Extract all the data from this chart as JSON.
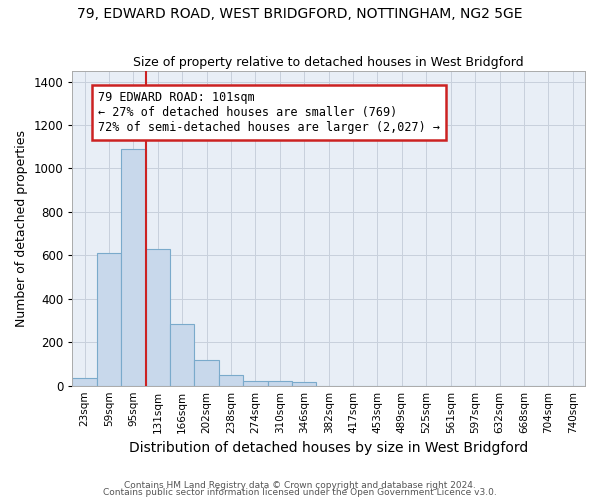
{
  "title1": "79, EDWARD ROAD, WEST BRIDGFORD, NOTTINGHAM, NG2 5GE",
  "title2": "Size of property relative to detached houses in West Bridgford",
  "xlabel": "Distribution of detached houses by size in West Bridgford",
  "ylabel": "Number of detached properties",
  "footnote1": "Contains HM Land Registry data © Crown copyright and database right 2024.",
  "footnote2": "Contains public sector information licensed under the Open Government Licence v3.0.",
  "bin_labels": [
    "23sqm",
    "59sqm",
    "95sqm",
    "131sqm",
    "166sqm",
    "202sqm",
    "238sqm",
    "274sqm",
    "310sqm",
    "346sqm",
    "382sqm",
    "417sqm",
    "453sqm",
    "489sqm",
    "525sqm",
    "561sqm",
    "597sqm",
    "632sqm",
    "668sqm",
    "704sqm",
    "740sqm"
  ],
  "bar_values": [
    35,
    610,
    1090,
    630,
    285,
    120,
    47,
    22,
    20,
    18,
    0,
    0,
    0,
    0,
    0,
    0,
    0,
    0,
    0,
    0,
    0
  ],
  "bar_color": "#c8d8eb",
  "bar_edge_color": "#7aaacb",
  "property_label": "79 EDWARD ROAD: 101sqm",
  "annotation_line1": "← 27% of detached houses are smaller (769)",
  "annotation_line2": "72% of semi-detached houses are larger (2,027) →",
  "vline_color": "#cc2222",
  "annotation_box_edge": "#cc2222",
  "ylim": [
    0,
    1450
  ],
  "yticks": [
    0,
    200,
    400,
    600,
    800,
    1000,
    1200,
    1400
  ],
  "grid_color": "#c8d0dc",
  "bg_color": "#e8eef6"
}
